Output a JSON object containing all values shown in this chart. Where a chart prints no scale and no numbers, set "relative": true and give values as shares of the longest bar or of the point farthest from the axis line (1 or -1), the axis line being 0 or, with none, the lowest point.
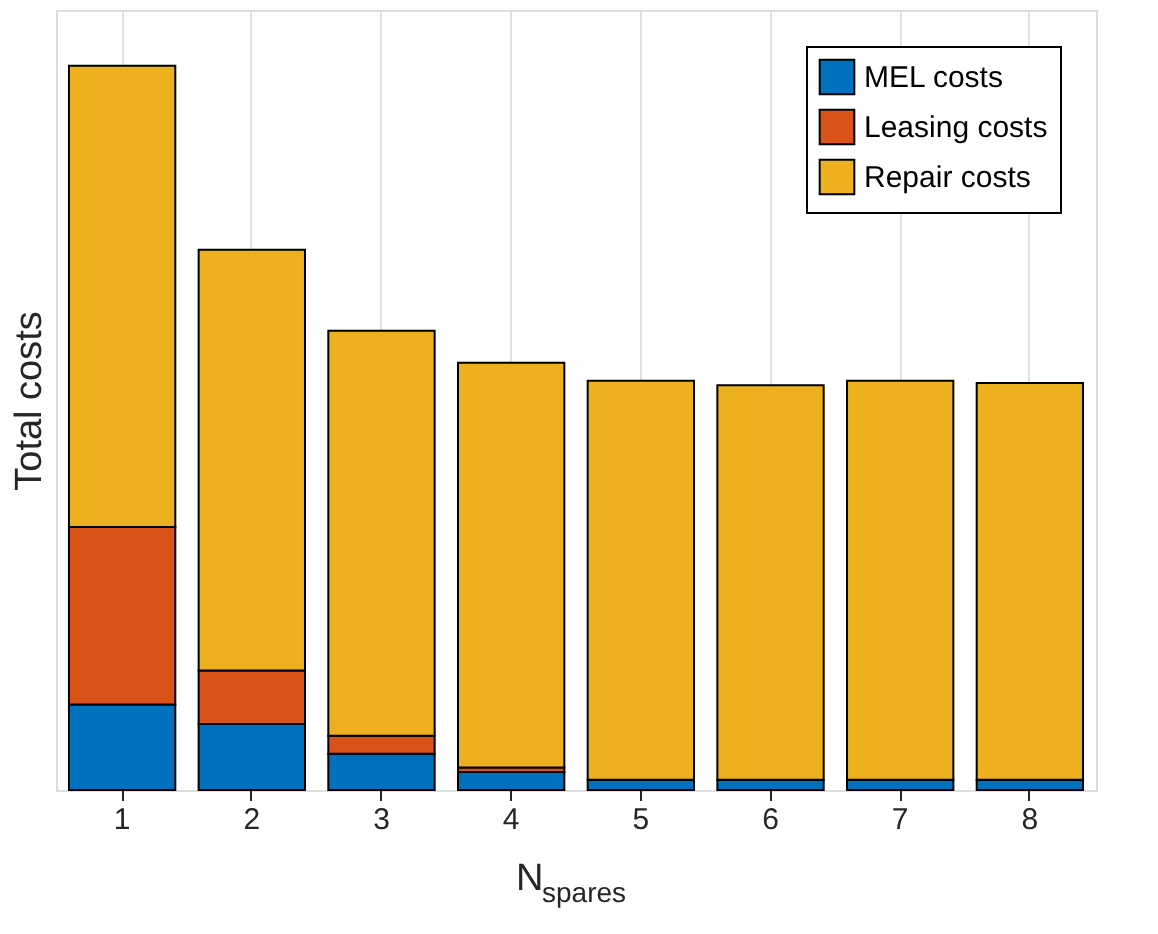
{
  "chart_data": {
    "type": "bar",
    "stacked": true,
    "relative": true,
    "xlabel": "N$_{spares}$",
    "ylabel": "Total costs",
    "categories": [
      "1",
      "2",
      "3",
      "4",
      "5",
      "6",
      "7",
      "8"
    ],
    "series": [
      {
        "name": "MEL costs",
        "color": "#0072bd",
        "values": [
          0.118,
          0.091,
          0.05,
          0.025,
          0.014,
          0.014,
          0.014,
          0.014
        ]
      },
      {
        "name": "Leasing costs",
        "color": "#d95319",
        "values": [
          0.245,
          0.074,
          0.025,
          0.006,
          0,
          0,
          0,
          0
        ]
      },
      {
        "name": "Repair costs",
        "color": "#edb120",
        "values": [
          0.637,
          0.581,
          0.559,
          0.559,
          0.551,
          0.545,
          0.551,
          0.548
        ]
      }
    ],
    "grid": "x",
    "legend": "top right"
  }
}
